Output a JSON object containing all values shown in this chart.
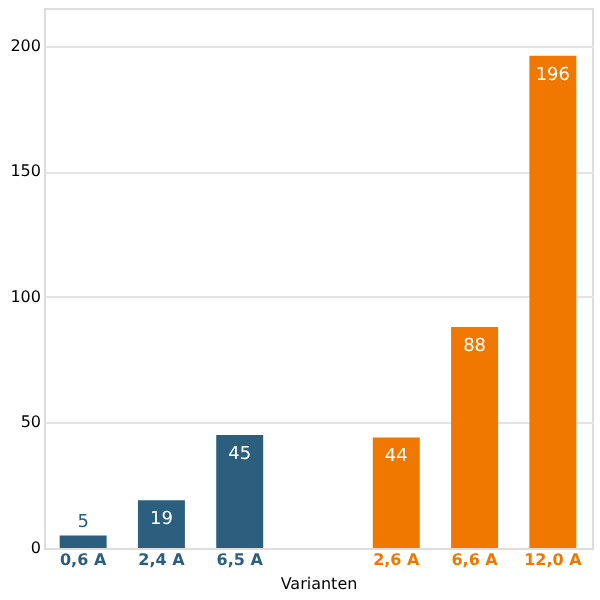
{
  "chart_data": {
    "type": "bar",
    "xlabel": "Varianten",
    "categories": [
      "0,6 A",
      "2,4 A",
      "6,5 A",
      null,
      "2,6 A",
      "6,6 A",
      "12,0 A"
    ],
    "values": [
      5,
      19,
      45,
      null,
      44,
      88,
      196
    ],
    "colors": [
      "#2b5f7d",
      "#2b5f7d",
      "#2b5f7d",
      null,
      "#f07800",
      "#f07800",
      "#f07800"
    ],
    "data_labels": true,
    "ylim": [
      0,
      215
    ],
    "yticks": [
      0,
      50,
      100,
      150,
      200
    ],
    "grid": "y"
  }
}
